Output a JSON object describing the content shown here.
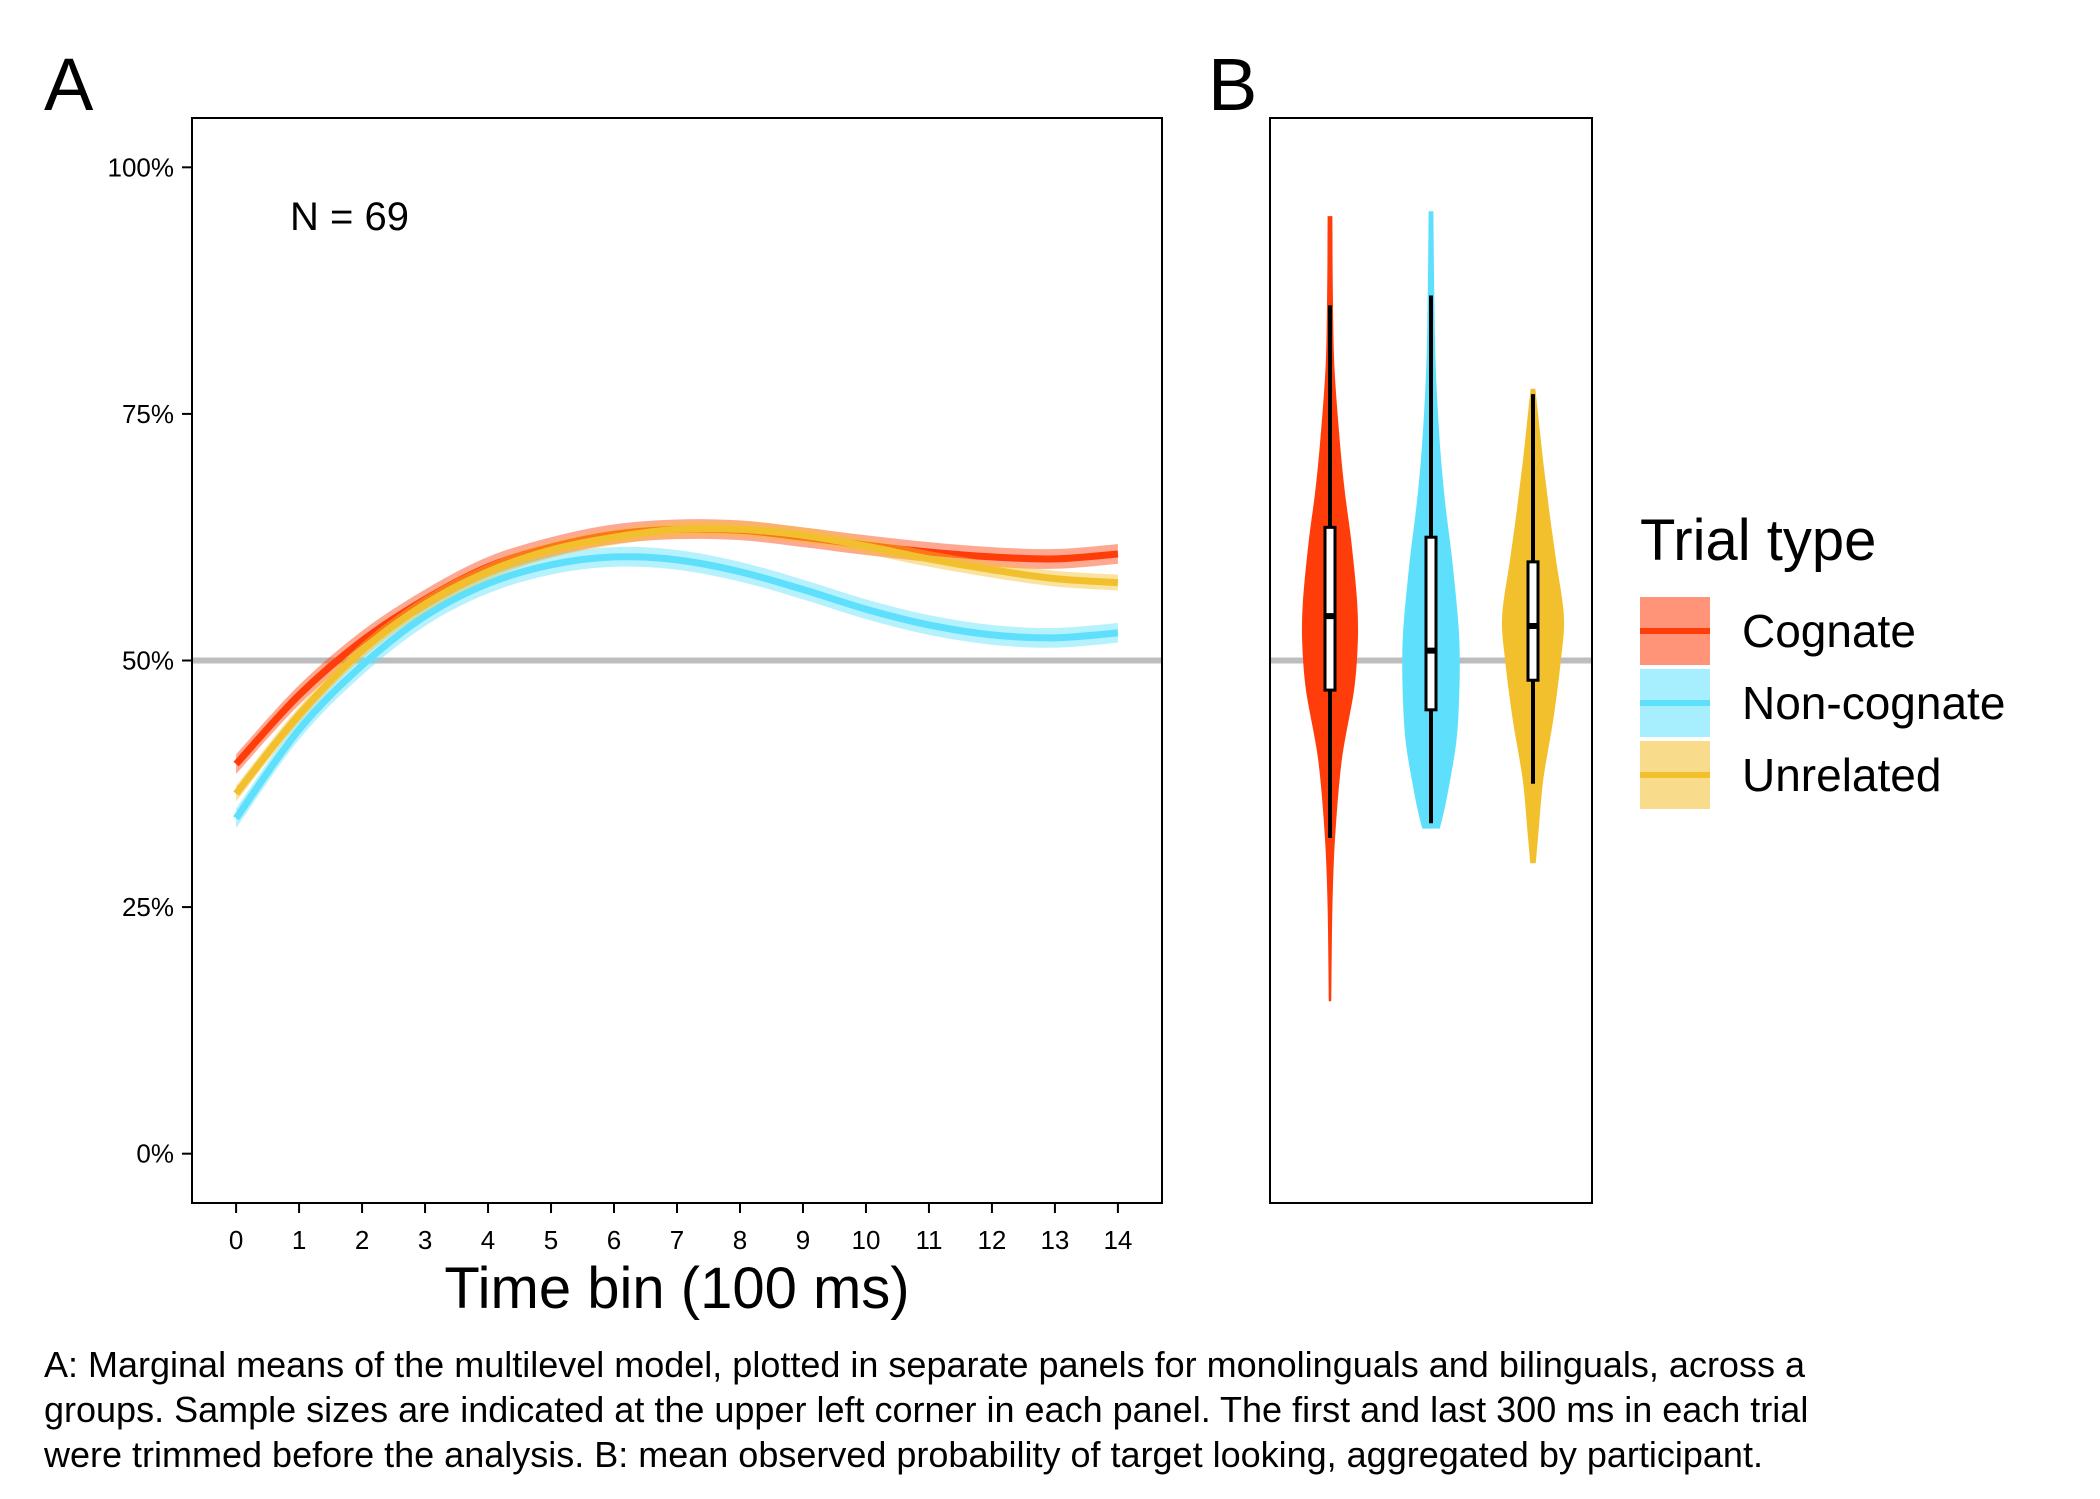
{
  "chart_data": [
    {
      "panel_label": "A",
      "type": "line",
      "xlabel": "Time bin (100 ms)",
      "ylabel": "",
      "x": [
        0,
        1,
        2,
        3,
        4,
        5,
        6,
        7,
        8,
        9,
        10,
        11,
        12,
        13,
        14
      ],
      "xlim": [
        -0.7,
        14.7
      ],
      "ylim": [
        -0.05,
        1.05
      ],
      "y_ticks": [
        0,
        0.25,
        0.5,
        0.75,
        1.0
      ],
      "y_tick_labels": [
        "0%",
        "25%",
        "50%",
        "75%",
        "100%"
      ],
      "x_tick_labels": [
        "0",
        "1",
        "2",
        "3",
        "4",
        "5",
        "6",
        "7",
        "8",
        "9",
        "10",
        "11",
        "12",
        "13",
        "14"
      ],
      "reference_line_y": 0.5,
      "annotation": "N = 69",
      "grid": false,
      "series": [
        {
          "name": "Cognate",
          "values": [
            0.395,
            0.465,
            0.52,
            0.562,
            0.595,
            0.615,
            0.628,
            0.633,
            0.632,
            0.625,
            0.617,
            0.61,
            0.605,
            0.603,
            0.608
          ],
          "band_halfwidth": 0.01
        },
        {
          "name": "Non-cognate",
          "values": [
            0.34,
            0.43,
            0.495,
            0.545,
            0.578,
            0.597,
            0.605,
            0.602,
            0.59,
            0.572,
            0.552,
            0.536,
            0.526,
            0.523,
            0.528
          ],
          "band_halfwidth": 0.01
        },
        {
          "name": "Unrelated",
          "values": [
            0.365,
            0.445,
            0.51,
            0.557,
            0.59,
            0.612,
            0.625,
            0.633,
            0.633,
            0.627,
            0.616,
            0.603,
            0.592,
            0.583,
            0.579
          ],
          "band_halfwidth": 0.008
        }
      ]
    },
    {
      "panel_label": "B",
      "type": "violin",
      "ylim": [
        -0.05,
        1.05
      ],
      "reference_line_y": 0.5,
      "categories": [
        "Cognate",
        "Non-cognate",
        "Unrelated"
      ],
      "series": [
        {
          "name": "Cognate",
          "min": 0.155,
          "max": 0.95,
          "q1": 0.47,
          "median": 0.545,
          "q3": 0.635,
          "whisker_low": 0.32,
          "whisker_high": 0.86,
          "density": [
            [
              0.155,
              0.02
            ],
            [
              0.25,
              0.05
            ],
            [
              0.32,
              0.12
            ],
            [
              0.4,
              0.3
            ],
            [
              0.47,
              0.62
            ],
            [
              0.52,
              0.72
            ],
            [
              0.56,
              0.7
            ],
            [
              0.62,
              0.55
            ],
            [
              0.67,
              0.38
            ],
            [
              0.72,
              0.25
            ],
            [
              0.8,
              0.1
            ],
            [
              0.88,
              0.06
            ],
            [
              0.95,
              0.05
            ]
          ]
        },
        {
          "name": "Non-cognate",
          "min": 0.33,
          "max": 0.955,
          "q1": 0.45,
          "median": 0.51,
          "q3": 0.625,
          "whisker_low": 0.335,
          "whisker_high": 0.87,
          "density": [
            [
              0.33,
              0.22
            ],
            [
              0.36,
              0.4
            ],
            [
              0.42,
              0.66
            ],
            [
              0.48,
              0.74
            ],
            [
              0.53,
              0.72
            ],
            [
              0.6,
              0.55
            ],
            [
              0.66,
              0.36
            ],
            [
              0.72,
              0.22
            ],
            [
              0.8,
              0.11
            ],
            [
              0.88,
              0.07
            ],
            [
              0.955,
              0.05
            ]
          ]
        },
        {
          "name": "Unrelated",
          "min": 0.295,
          "max": 0.775,
          "q1": 0.48,
          "median": 0.535,
          "q3": 0.6,
          "whisker_low": 0.375,
          "whisker_high": 0.77,
          "density": [
            [
              0.295,
              0.06
            ],
            [
              0.33,
              0.14
            ],
            [
              0.38,
              0.26
            ],
            [
              0.44,
              0.52
            ],
            [
              0.5,
              0.72
            ],
            [
              0.545,
              0.8
            ],
            [
              0.6,
              0.6
            ],
            [
              0.65,
              0.42
            ],
            [
              0.7,
              0.26
            ],
            [
              0.75,
              0.12
            ],
            [
              0.775,
              0.05
            ]
          ]
        }
      ]
    }
  ],
  "legend": {
    "title": "Trial type",
    "entries": [
      "Cognate",
      "Non-cognate",
      "Unrelated"
    ]
  },
  "colors": {
    "Cognate": "#ff3d0a",
    "Non-cognate": "#5ee0fd",
    "Unrelated": "#f3c02d",
    "reference_line": "#bdbdbd"
  },
  "caption": {
    "line1": "A: Marginal means of the multilevel model, plotted in separate panels for monolinguals and bilinguals, across a",
    "line2": "groups. Sample sizes are indicated at the upper left corner in each panel. The first and last 300 ms in each trial",
    "line3": "were trimmed before the analysis. B: mean observed probability of target looking, aggregated by participant."
  }
}
